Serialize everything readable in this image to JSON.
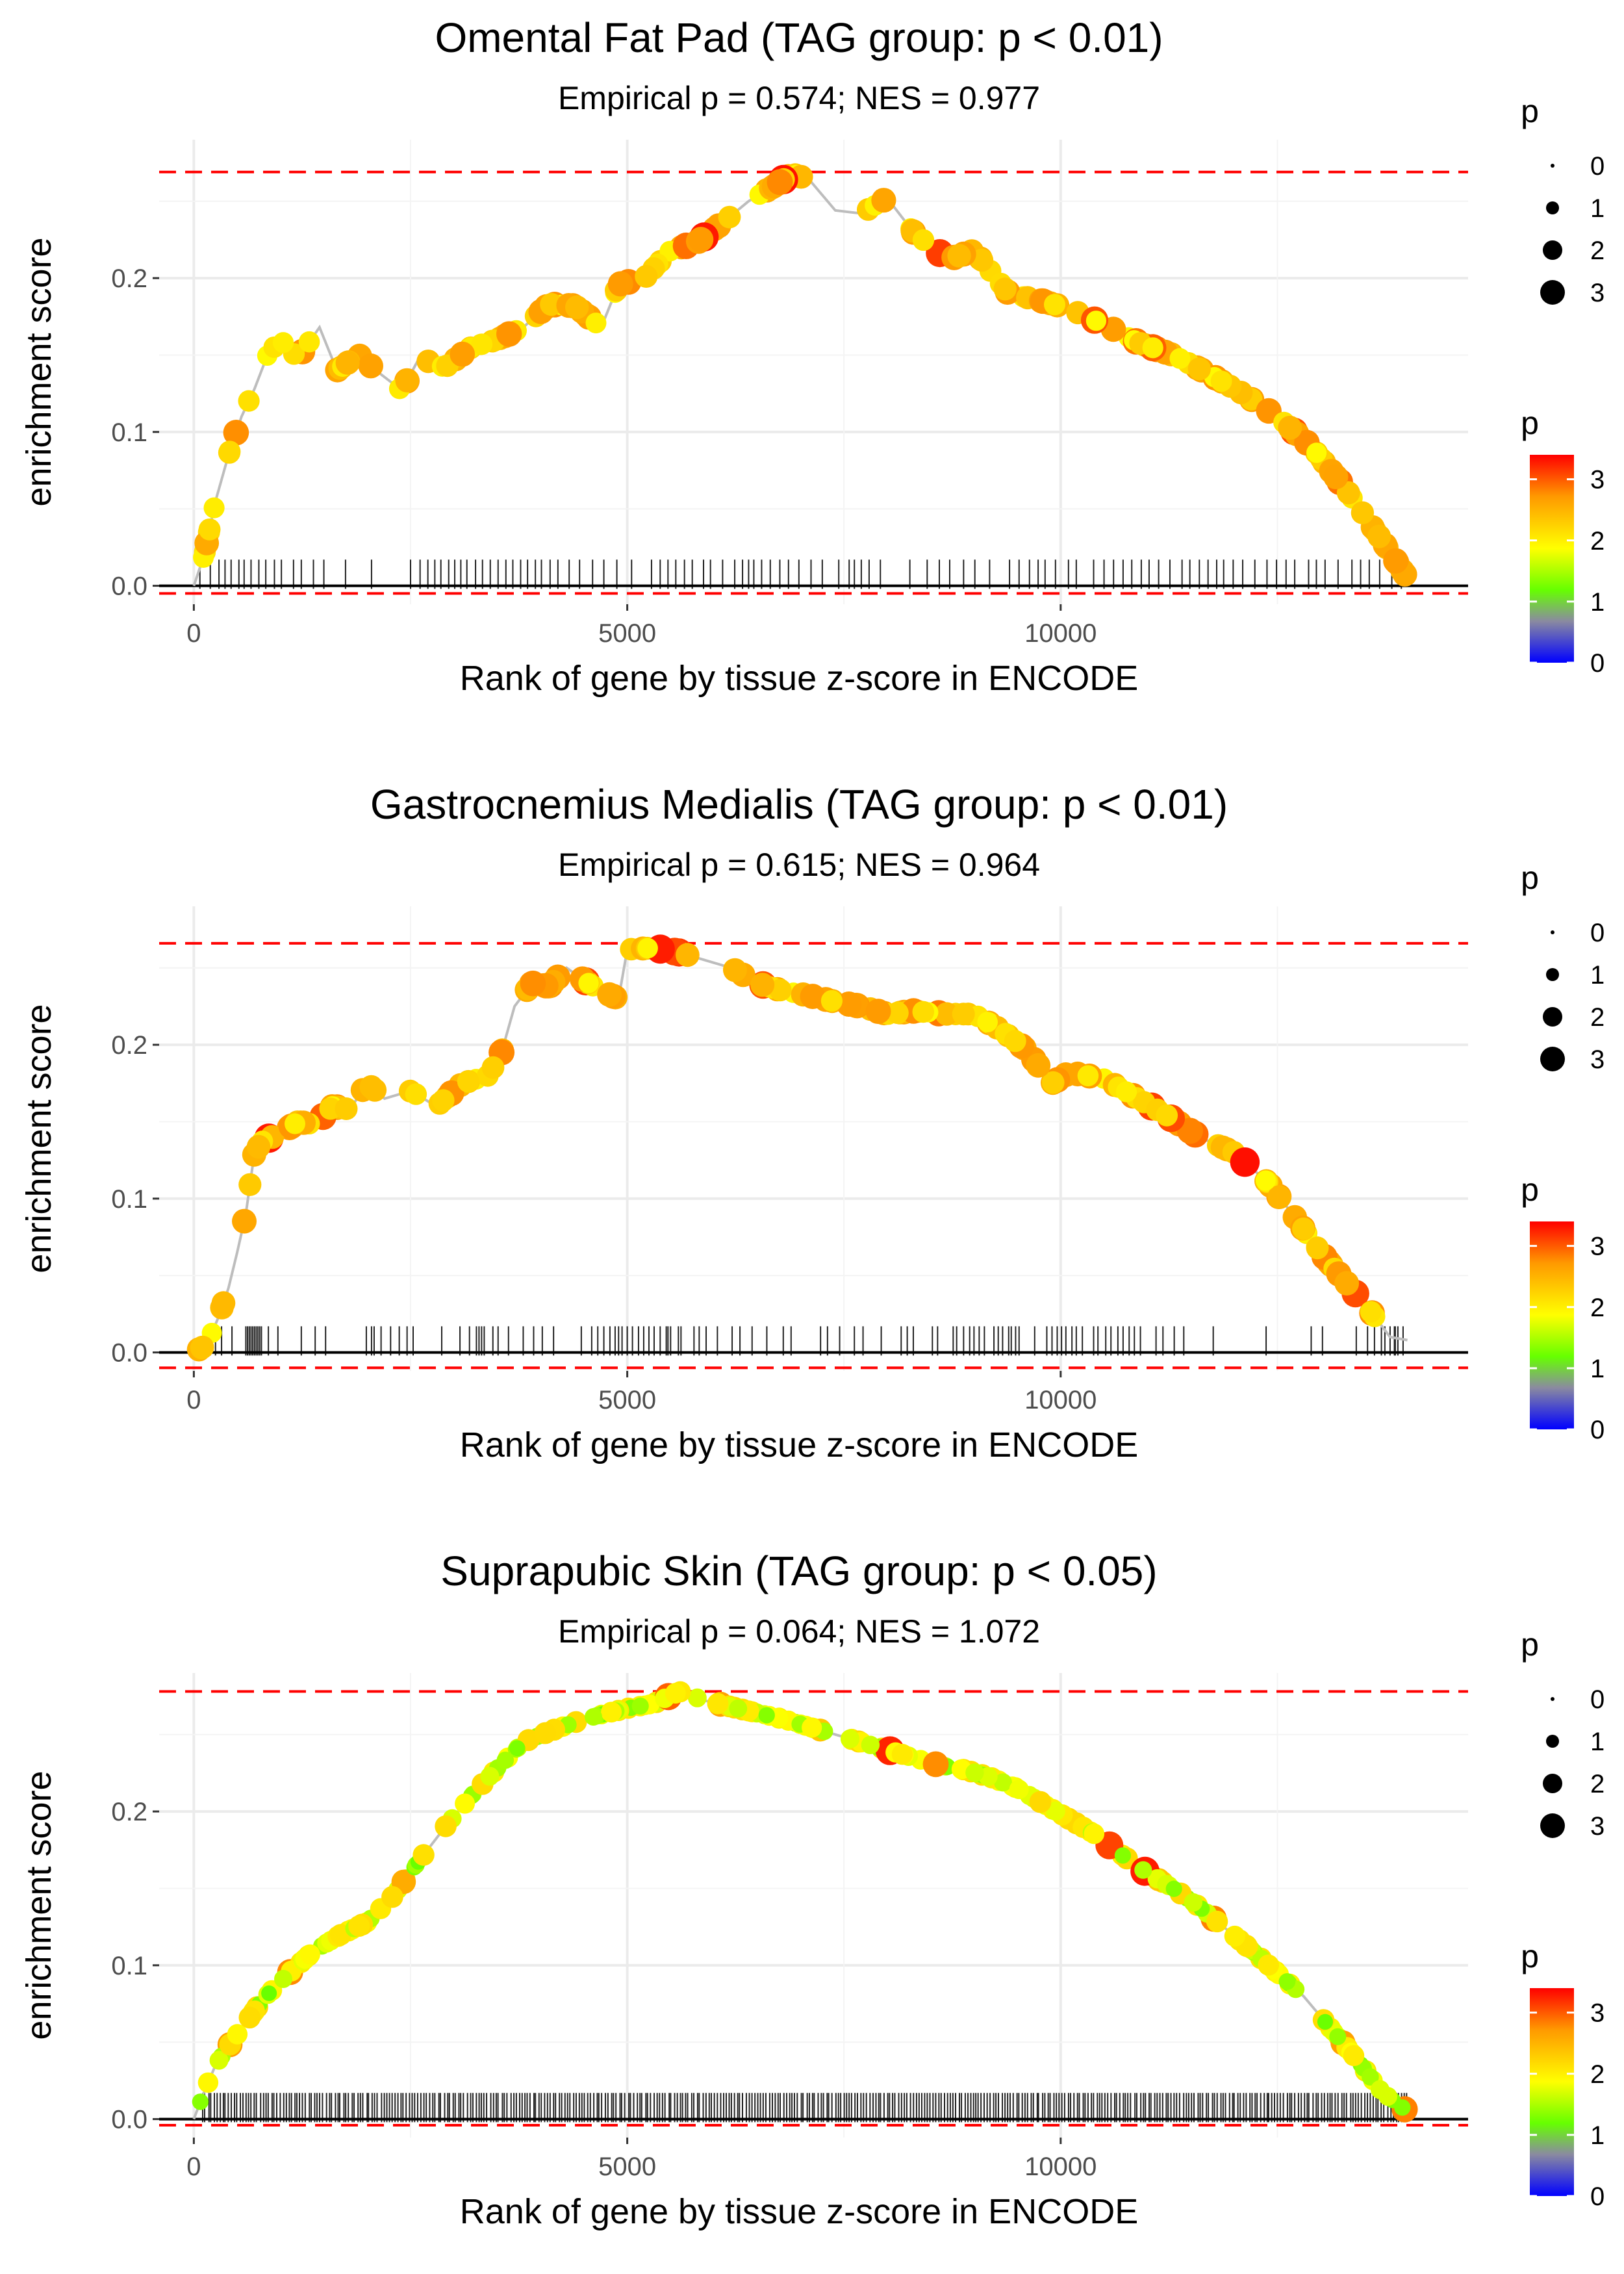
{
  "chart_data": [
    {
      "type": "line",
      "title": "Omental Fat Pad (TAG group: p < 0.01)",
      "subtitle": "Empirical p = 0.574; NES = 0.977",
      "xlabel": "Rank of gene by tissue z-score in ENCODE",
      "ylabel": "enrichment score",
      "xlim": [
        -400,
        14700
      ],
      "ylim": [
        -0.012,
        0.29
      ],
      "x_ticks": [
        0,
        5000,
        10000
      ],
      "x_tick_labels": [
        "0",
        "5000",
        "10000"
      ],
      "y_ticks": [
        0.0,
        0.1,
        0.2
      ],
      "y_tick_labels": [
        "0.0",
        "0.1",
        "0.2"
      ],
      "max_es_line": 0.269,
      "min_es_line": -0.005,
      "es_curve": [
        [
          0,
          0
        ],
        [
          120,
          0.02
        ],
        [
          250,
          0.055
        ],
        [
          400,
          0.085
        ],
        [
          550,
          0.11
        ],
        [
          700,
          0.128
        ],
        [
          850,
          0.15
        ],
        [
          1000,
          0.16
        ],
        [
          1200,
          0.148
        ],
        [
          1450,
          0.168
        ],
        [
          1650,
          0.14
        ],
        [
          1900,
          0.15
        ],
        [
          2100,
          0.14
        ],
        [
          2400,
          0.127
        ],
        [
          2600,
          0.148
        ],
        [
          2900,
          0.142
        ],
        [
          3200,
          0.155
        ],
        [
          3500,
          0.16
        ],
        [
          3800,
          0.168
        ],
        [
          4100,
          0.183
        ],
        [
          4400,
          0.182
        ],
        [
          4700,
          0.168
        ],
        [
          4900,
          0.196
        ],
        [
          5200,
          0.2
        ],
        [
          5500,
          0.218
        ],
        [
          5800,
          0.223
        ],
        [
          6100,
          0.236
        ],
        [
          6400,
          0.25
        ],
        [
          6700,
          0.26
        ],
        [
          6900,
          0.268
        ],
        [
          7100,
          0.264
        ],
        [
          7400,
          0.244
        ],
        [
          7700,
          0.242
        ],
        [
          8000,
          0.252
        ],
        [
          8300,
          0.23
        ],
        [
          8700,
          0.212
        ],
        [
          9000,
          0.218
        ],
        [
          9400,
          0.19
        ],
        [
          9800,
          0.185
        ],
        [
          10100,
          0.18
        ],
        [
          10500,
          0.17
        ],
        [
          10900,
          0.158
        ],
        [
          11300,
          0.15
        ],
        [
          11700,
          0.138
        ],
        [
          12100,
          0.125
        ],
        [
          12500,
          0.11
        ],
        [
          12900,
          0.09
        ],
        [
          13300,
          0.062
        ],
        [
          13700,
          0.03
        ],
        [
          14000,
          0.005
        ]
      ],
      "hit_ranks": [
        70,
        190,
        290,
        360,
        430,
        520,
        580,
        660,
        750,
        830,
        930,
        1010,
        1150,
        1240,
        1380,
        1500,
        1750,
        2050,
        2500,
        2610,
        2700,
        2780,
        2850,
        2940,
        3010,
        3080,
        3150,
        3250,
        3330,
        3420,
        3510,
        3600,
        3680,
        3770,
        3850,
        3940,
        4010,
        4110,
        4200,
        4330,
        4450,
        4600,
        4730,
        4880,
        5050,
        5280,
        5380,
        5470,
        5560,
        5660,
        5750,
        5880,
        5960,
        6100,
        6240,
        6330,
        6400,
        6460,
        6550,
        6650,
        6760,
        6860,
        6980,
        7120,
        7250,
        7440,
        7560,
        7620,
        7700,
        7790,
        7920,
        8260,
        8460,
        8600,
        8720,
        8880,
        9010,
        9180,
        9410,
        9520,
        9640,
        9740,
        9820,
        9940,
        10090,
        10180,
        10380,
        10500,
        10610,
        10720,
        10820,
        10930,
        11020,
        11130,
        11260,
        11400,
        11490,
        11600,
        11700,
        11800,
        11880,
        11990,
        12100,
        12240,
        12380,
        12490,
        12600,
        12700,
        12860,
        12950,
        13050,
        13200,
        13360,
        13460,
        13560,
        13680,
        13820,
        13930
      ],
      "point_sizes_legend": {
        "title": "p",
        "labels": [
          "0",
          "1",
          "2",
          "3"
        ]
      },
      "color_legend": {
        "title": "p",
        "labels": [
          "3",
          "2",
          "1",
          "0"
        ]
      }
    },
    {
      "type": "line",
      "title": "Gastrocnemius Medialis (TAG group: p < 0.01)",
      "subtitle": "Empirical p = 0.615; NES = 0.964",
      "xlabel": "Rank of gene by tissue z-score in ENCODE",
      "ylabel": "enrichment score",
      "xlim": [
        -400,
        14700
      ],
      "ylim": [
        -0.012,
        0.29
      ],
      "x_ticks": [
        0,
        5000,
        10000
      ],
      "x_tick_labels": [
        "0",
        "5000",
        "10000"
      ],
      "y_ticks": [
        0.0,
        0.1,
        0.2
      ],
      "y_tick_labels": [
        "0.0",
        "0.1",
        "0.2"
      ],
      "max_es_line": 0.266,
      "min_es_line": -0.01,
      "es_curve": [
        [
          0,
          0
        ],
        [
          150,
          0.005
        ],
        [
          300,
          0.025
        ],
        [
          400,
          0.042
        ],
        [
          500,
          0.065
        ],
        [
          600,
          0.09
        ],
        [
          700,
          0.13
        ],
        [
          800,
          0.138
        ],
        [
          1000,
          0.142
        ],
        [
          1200,
          0.15
        ],
        [
          1400,
          0.148
        ],
        [
          1600,
          0.16
        ],
        [
          1800,
          0.158
        ],
        [
          2000,
          0.175
        ],
        [
          2200,
          0.165
        ],
        [
          2500,
          0.17
        ],
        [
          2800,
          0.16
        ],
        [
          3100,
          0.175
        ],
        [
          3400,
          0.18
        ],
        [
          3550,
          0.195
        ],
        [
          3700,
          0.225
        ],
        [
          3900,
          0.24
        ],
        [
          4100,
          0.238
        ],
        [
          4300,
          0.25
        ],
        [
          4500,
          0.242
        ],
        [
          4700,
          0.235
        ],
        [
          4900,
          0.23
        ],
        [
          5000,
          0.262
        ],
        [
          5300,
          0.263
        ],
        [
          5600,
          0.26
        ],
        [
          5900,
          0.255
        ],
        [
          6200,
          0.25
        ],
        [
          6500,
          0.24
        ],
        [
          6800,
          0.235
        ],
        [
          7100,
          0.232
        ],
        [
          7400,
          0.228
        ],
        [
          7700,
          0.225
        ],
        [
          8000,
          0.22
        ],
        [
          8300,
          0.222
        ],
        [
          8700,
          0.22
        ],
        [
          9000,
          0.22
        ],
        [
          9300,
          0.21
        ],
        [
          9600,
          0.197
        ],
        [
          9900,
          0.175
        ],
        [
          10100,
          0.182
        ],
        [
          10500,
          0.178
        ],
        [
          10800,
          0.168
        ],
        [
          11200,
          0.155
        ],
        [
          11600,
          0.14
        ],
        [
          12000,
          0.13
        ],
        [
          12400,
          0.11
        ],
        [
          12700,
          0.088
        ],
        [
          13000,
          0.065
        ],
        [
          13300,
          0.045
        ],
        [
          13600,
          0.025
        ],
        [
          13800,
          0.01
        ],
        [
          14000,
          0.008
        ]
      ],
      "hit_ranks": [
        140,
        190,
        250,
        320,
        440,
        600,
        620,
        640,
        660,
        680,
        700,
        720,
        740,
        760,
        780,
        860,
        970,
        1240,
        1400,
        1520,
        1990,
        2050,
        2080,
        2160,
        2270,
        2370,
        2460,
        2530,
        2860,
        3070,
        3180,
        3260,
        3290,
        3320,
        3350,
        3450,
        3510,
        3630,
        3800,
        3920,
        4020,
        4150,
        4470,
        4590,
        4660,
        4730,
        4800,
        4860,
        4900,
        4940,
        5000,
        5060,
        5130,
        5190,
        5250,
        5310,
        5380,
        5450,
        5470,
        5500,
        5590,
        5620,
        5770,
        5830,
        5910,
        6040,
        6210,
        6300,
        6440,
        6610,
        6800,
        6890,
        7230,
        7310,
        7450,
        7620,
        7720,
        7930,
        8160,
        8230,
        8300,
        8520,
        8580,
        8760,
        8800,
        8880,
        8950,
        9000,
        9060,
        9120,
        9230,
        9280,
        9330,
        9400,
        9430,
        9480,
        9520,
        9700,
        9840,
        9900,
        9960,
        10010,
        10060,
        10130,
        10180,
        10250,
        10380,
        10430,
        10520,
        10580,
        10660,
        10720,
        10790,
        10850,
        10920,
        11100,
        11180,
        11310,
        11420,
        11760,
        12370,
        12890,
        13020,
        13410,
        13540,
        13620,
        13700,
        13740,
        13800,
        13850,
        13860,
        13890,
        13950
      ],
      "point_sizes_legend": {
        "title": "p",
        "labels": [
          "0",
          "1",
          "2",
          "3"
        ]
      },
      "color_legend": {
        "title": "p",
        "labels": [
          "3",
          "2",
          "1",
          "0"
        ]
      }
    },
    {
      "type": "line",
      "title": "Suprapubic Skin (TAG group: p < 0.05)",
      "subtitle": "Empirical p = 0.064; NES = 1.072",
      "xlabel": "Rank of gene by tissue z-score in ENCODE",
      "ylabel": "enrichment score",
      "xlim": [
        -400,
        14700
      ],
      "ylim": [
        -0.012,
        0.29
      ],
      "x_ticks": [
        0,
        5000,
        10000
      ],
      "x_tick_labels": [
        "0",
        "5000",
        "10000"
      ],
      "y_ticks": [
        0.0,
        0.1,
        0.2
      ],
      "y_tick_labels": [
        "0.0",
        "0.1",
        "0.2"
      ],
      "max_es_line": 0.278,
      "min_es_line": -0.004,
      "es_curve": [
        [
          0,
          0
        ],
        [
          100,
          0.015
        ],
        [
          250,
          0.035
        ],
        [
          500,
          0.055
        ],
        [
          800,
          0.078
        ],
        [
          1100,
          0.095
        ],
        [
          1400,
          0.11
        ],
        [
          1700,
          0.12
        ],
        [
          2000,
          0.128
        ],
        [
          2300,
          0.145
        ],
        [
          2600,
          0.168
        ],
        [
          2900,
          0.19
        ],
        [
          3200,
          0.21
        ],
        [
          3500,
          0.228
        ],
        [
          3800,
          0.245
        ],
        [
          4100,
          0.252
        ],
        [
          4400,
          0.258
        ],
        [
          4700,
          0.263
        ],
        [
          5000,
          0.267
        ],
        [
          5300,
          0.27
        ],
        [
          5600,
          0.278
        ],
        [
          5900,
          0.272
        ],
        [
          6200,
          0.268
        ],
        [
          6500,
          0.264
        ],
        [
          6800,
          0.26
        ],
        [
          7100,
          0.255
        ],
        [
          7400,
          0.25
        ],
        [
          7700,
          0.245
        ],
        [
          8000,
          0.24
        ],
        [
          8300,
          0.235
        ],
        [
          8600,
          0.23
        ],
        [
          8900,
          0.227
        ],
        [
          9200,
          0.222
        ],
        [
          9500,
          0.215
        ],
        [
          9800,
          0.205
        ],
        [
          10100,
          0.195
        ],
        [
          10400,
          0.185
        ],
        [
          10700,
          0.172
        ],
        [
          11000,
          0.16
        ],
        [
          11300,
          0.15
        ],
        [
          11600,
          0.138
        ],
        [
          11900,
          0.124
        ],
        [
          12200,
          0.11
        ],
        [
          12500,
          0.095
        ],
        [
          12800,
          0.08
        ],
        [
          13100,
          0.06
        ],
        [
          13400,
          0.04
        ],
        [
          13700,
          0.018
        ],
        [
          14000,
          0.005
        ]
      ],
      "hit_ranks": "dense: ~420 ranks spread evenly from 100 to 14000",
      "point_sizes_legend": {
        "title": "p",
        "labels": [
          "0",
          "1",
          "2",
          "3"
        ]
      },
      "color_legend": {
        "title": "p",
        "labels": [
          "3",
          "2",
          "1",
          "0"
        ]
      }
    }
  ],
  "colors": {
    "max_line": "#ff0000",
    "axis_line": "#000000",
    "grid": "#ebebeb",
    "curve": "#bdbdbd",
    "gradient": [
      "#0000ff",
      "#8a8aa0",
      "#66ff00",
      "#ffff00",
      "#ff9900",
      "#ff0000"
    ]
  }
}
